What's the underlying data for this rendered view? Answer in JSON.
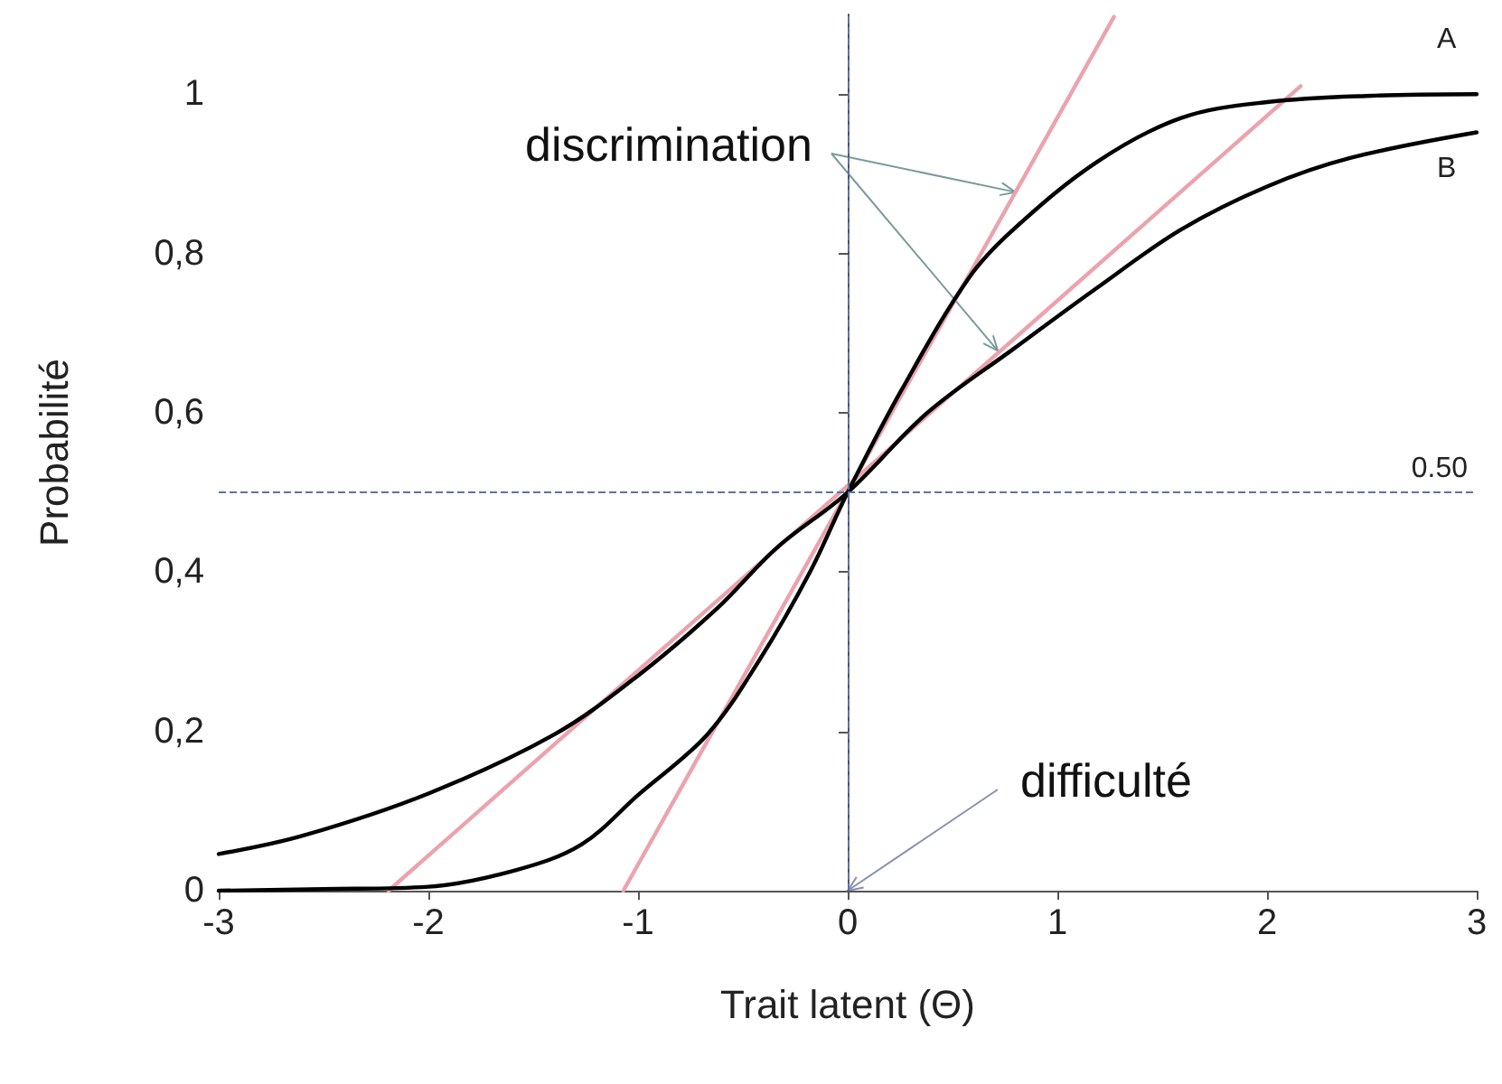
{
  "chart_data": {
    "type": "line",
    "xlabel": "Trait latent (Θ)",
    "ylabel": "Probabilité",
    "xlim": [
      -3,
      3
    ],
    "xticks": [
      -3,
      -2,
      -1,
      0,
      1,
      2,
      3
    ],
    "ylim": [
      0,
      1.1
    ],
    "yticks": [
      0,
      {
        "value": 0.2,
        "label": "0,2"
      },
      {
        "value": 0.4,
        "label": "0,4"
      },
      {
        "value": 0.6,
        "label": "0,6"
      },
      {
        "value": 0.8,
        "label": "0,8"
      },
      1
    ],
    "series": [
      {
        "name": "A",
        "color": "#000000",
        "x": [
          -3,
          -2.5,
          -2,
          -1.58,
          -1.27,
          -1,
          -0.67,
          -0.42,
          -0.18,
          0,
          0.26,
          0.58,
          0.79,
          1.19,
          1.59,
          2,
          2.5,
          3
        ],
        "values": [
          0,
          0.002,
          0.005,
          0.026,
          0.058,
          0.12,
          0.196,
          0.29,
          0.4,
          0.5,
          0.63,
          0.77,
          0.83,
          0.915,
          0.97,
          0.99,
          0.998,
          1.0
        ]
      },
      {
        "name": "B",
        "color": "#000000",
        "x": [
          -3,
          -2.6,
          -2,
          -1.4,
          -1,
          -0.62,
          -0.34,
          0,
          0.38,
          0.79,
          1.19,
          1.59,
          2,
          2.4,
          3
        ],
        "values": [
          0.046,
          0.069,
          0.122,
          0.196,
          0.27,
          0.355,
          0.43,
          0.5,
          0.6,
          0.68,
          0.757,
          0.83,
          0.884,
          0.92,
          0.952
        ]
      },
      {
        "color": "#eba3ae",
        "x": [
          -1.07,
          1.27
        ],
        "values": [
          0,
          1.097
        ]
      },
      {
        "color": "#eba3ae",
        "x": [
          -2.19,
          2.16
        ],
        "values": [
          0,
          1.01
        ]
      }
    ],
    "ref_lines": [
      {
        "axis": "y",
        "value": 0.5,
        "label": "0.50",
        "color": "#5b73a8",
        "line_style": "dashed"
      },
      {
        "axis": "x",
        "value": 0,
        "label": null,
        "color": "#5b73a8",
        "line_style": "dashed"
      }
    ],
    "annotations": [
      {
        "text": "discrimination",
        "x": 0.8,
        "y": 0.877
      },
      {
        "text": "difficulté",
        "x": 0,
        "y": 0
      }
    ],
    "marker": "none",
    "line_style": "solid",
    "grid": false,
    "legend": false
  }
}
